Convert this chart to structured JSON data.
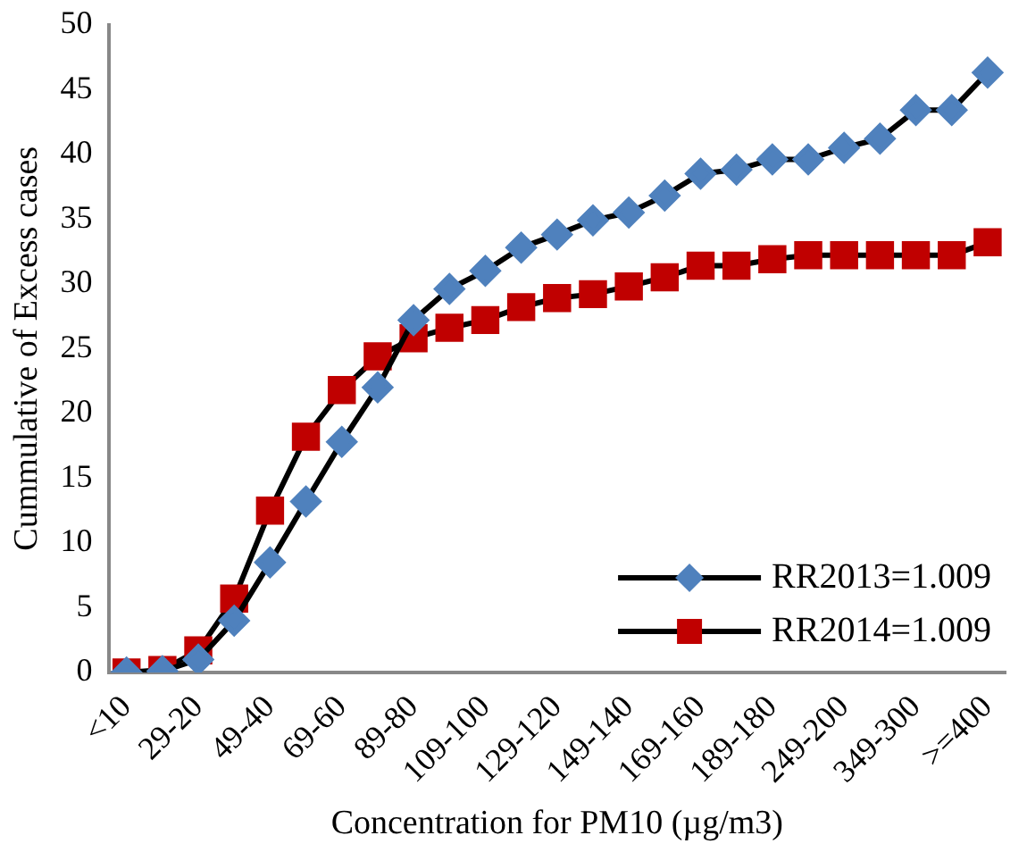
{
  "chart_data": {
    "type": "line",
    "xlabel": "Concentration for PM10 (µg/m3)",
    "ylabel": "Cummulative of Excess cases",
    "categories": [
      "<10",
      null,
      "29-20",
      null,
      "49-40",
      null,
      "69-60",
      null,
      "89-80",
      null,
      "109-100",
      null,
      "129-120",
      null,
      "149-140",
      null,
      "169-160",
      null,
      "189-180",
      null,
      "249-200",
      null,
      "349-300",
      null,
      ">=400"
    ],
    "series": [
      {
        "name": "RR2013=1.009",
        "color": "#4f81bd",
        "marker": "diamond",
        "values": [
          0,
          0.1,
          1,
          4,
          8.5,
          13.2,
          17.8,
          22,
          27.2,
          29.6,
          31,
          32.8,
          33.8,
          34.9,
          35.5,
          36.8,
          38.5,
          38.8,
          39.6,
          39.6,
          40.5,
          41.2,
          43.4,
          43.4,
          46.3
        ]
      },
      {
        "name": "RR2014=1.009",
        "color": "#c00000",
        "marker": "square",
        "values": [
          0,
          0.2,
          1.7,
          5.7,
          12.5,
          18.2,
          21.8,
          24.4,
          25.8,
          26.6,
          27.2,
          28.2,
          28.9,
          29.2,
          29.8,
          30.5,
          31.4,
          31.4,
          31.9,
          32.2,
          32.2,
          32.2,
          32.2,
          32.2,
          33.2
        ]
      }
    ],
    "ylim": [
      0,
      50
    ],
    "yticks": [
      0,
      5,
      10,
      15,
      20,
      25,
      30,
      35,
      40,
      45,
      50
    ],
    "grid": false,
    "legend": "bottom right"
  }
}
